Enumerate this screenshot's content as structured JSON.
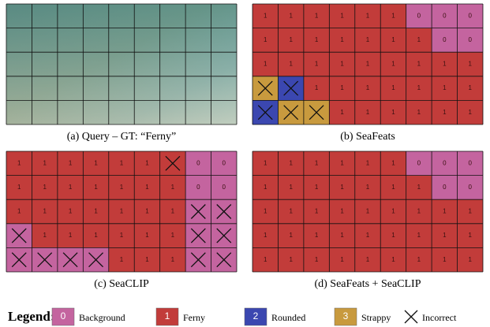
{
  "panels": [
    {
      "caption": "(a) Query – GT: “Ferny”"
    },
    {
      "caption": "(b) SeaFeats",
      "labels": [
        [
          1,
          1,
          1,
          1,
          1,
          1,
          0,
          0,
          0
        ],
        [
          1,
          1,
          1,
          1,
          1,
          1,
          1,
          0,
          0
        ],
        [
          1,
          1,
          1,
          1,
          1,
          1,
          1,
          1,
          1
        ],
        [
          3,
          2,
          1,
          1,
          1,
          1,
          1,
          1,
          1
        ],
        [
          2,
          3,
          3,
          1,
          1,
          1,
          1,
          1,
          1
        ]
      ],
      "incorrect": [
        [
          false,
          false,
          false,
          false,
          false,
          false,
          false,
          false,
          false
        ],
        [
          false,
          false,
          false,
          false,
          false,
          false,
          false,
          false,
          false
        ],
        [
          false,
          false,
          false,
          false,
          false,
          false,
          false,
          false,
          false
        ],
        [
          true,
          true,
          false,
          false,
          false,
          false,
          false,
          false,
          false
        ],
        [
          true,
          true,
          true,
          false,
          false,
          false,
          false,
          false,
          false
        ]
      ]
    },
    {
      "caption": "(c) SeaCLIP",
      "labels": [
        [
          1,
          1,
          1,
          1,
          1,
          1,
          1,
          0,
          0
        ],
        [
          1,
          1,
          1,
          1,
          1,
          1,
          1,
          0,
          0
        ],
        [
          1,
          1,
          1,
          1,
          1,
          1,
          1,
          0,
          0
        ],
        [
          0,
          1,
          1,
          1,
          1,
          1,
          1,
          0,
          0
        ],
        [
          0,
          0,
          0,
          0,
          1,
          1,
          1,
          0,
          0
        ]
      ],
      "incorrect": [
        [
          false,
          false,
          false,
          false,
          false,
          false,
          true,
          false,
          false
        ],
        [
          false,
          false,
          false,
          false,
          false,
          false,
          false,
          false,
          false
        ],
        [
          false,
          false,
          false,
          false,
          false,
          false,
          false,
          true,
          true
        ],
        [
          true,
          false,
          false,
          false,
          false,
          false,
          false,
          true,
          true
        ],
        [
          true,
          true,
          true,
          true,
          false,
          false,
          false,
          true,
          true
        ]
      ]
    },
    {
      "caption": "(d) SeaFeats + SeaCLIP",
      "labels": [
        [
          1,
          1,
          1,
          1,
          1,
          1,
          0,
          0,
          0
        ],
        [
          1,
          1,
          1,
          1,
          1,
          1,
          1,
          0,
          0
        ],
        [
          1,
          1,
          1,
          1,
          1,
          1,
          1,
          1,
          1
        ],
        [
          1,
          1,
          1,
          1,
          1,
          1,
          1,
          1,
          1
        ],
        [
          1,
          1,
          1,
          1,
          1,
          1,
          1,
          1,
          1
        ]
      ],
      "incorrect": [
        [
          false,
          false,
          false,
          false,
          false,
          false,
          false,
          false,
          false
        ],
        [
          false,
          false,
          false,
          false,
          false,
          false,
          false,
          false,
          false
        ],
        [
          false,
          false,
          false,
          false,
          false,
          false,
          false,
          false,
          false
        ],
        [
          false,
          false,
          false,
          false,
          false,
          false,
          false,
          false,
          false
        ],
        [
          false,
          false,
          false,
          false,
          false,
          false,
          false,
          false,
          false
        ]
      ]
    }
  ],
  "legend": {
    "title": "Legend:",
    "classes": [
      {
        "value": 0,
        "label": "Background",
        "color": "#c4649f"
      },
      {
        "value": 1,
        "label": "Ferny",
        "color": "#c23c3a"
      },
      {
        "value": 2,
        "label": "Rounded",
        "color": "#3b47b0"
      },
      {
        "value": 3,
        "label": "Strappy",
        "color": "#c89a3e"
      }
    ],
    "incorrect": "Incorrect"
  }
}
